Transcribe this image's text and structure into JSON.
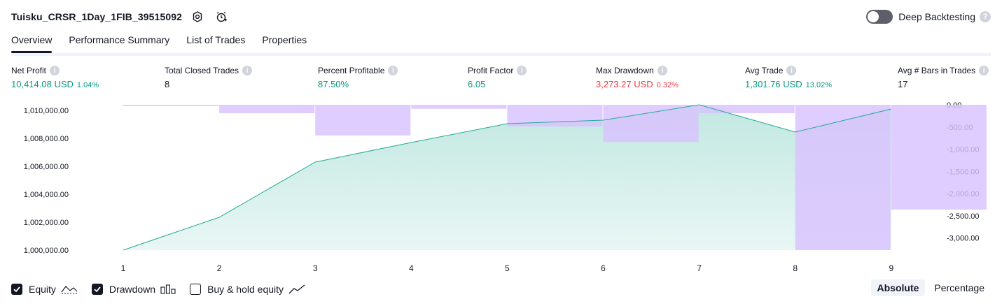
{
  "header": {
    "title": "Tuisku_CRSR_1Day_1FIB_39515092",
    "deep_backtesting_label": "Deep Backtesting",
    "deep_backtesting_on": false
  },
  "tabs": [
    {
      "label": "Overview",
      "active": true
    },
    {
      "label": "Performance Summary",
      "active": false
    },
    {
      "label": "List of Trades",
      "active": false
    },
    {
      "label": "Properties",
      "active": false
    }
  ],
  "stats": {
    "net_profit": {
      "label": "Net Profit",
      "value": "10,414.08 USD",
      "sub": "1.04%"
    },
    "total_closed_trades": {
      "label": "Total Closed Trades",
      "value": "8"
    },
    "percent_profitable": {
      "label": "Percent Profitable",
      "value": "87.50%"
    },
    "profit_factor": {
      "label": "Profit Factor",
      "value": "6.05"
    },
    "max_drawdown": {
      "label": "Max Drawdown",
      "value": "3,273.27 USD",
      "sub": "0.32%"
    },
    "avg_trade": {
      "label": "Avg Trade",
      "value": "1,301.76 USD",
      "sub": "13.02%"
    },
    "avg_bars": {
      "label": "Avg # Bars in Trades",
      "value": "17"
    }
  },
  "chart_data": {
    "type": "area",
    "x": [
      1,
      2,
      3,
      4,
      5,
      6,
      7,
      8,
      9
    ],
    "left_axis": {
      "ticks": [
        "1,010,000.00",
        "1,008,000.00",
        "1,006,000.00",
        "1,004,000.00",
        "1,002,000.00",
        "1,000,000.00"
      ],
      "tick_values": [
        1010000,
        1008000,
        1006000,
        1004000,
        1002000,
        1000000
      ],
      "range": [
        1000000,
        1010400
      ]
    },
    "right_axis": {
      "ticks": [
        "0.00",
        "-500.00",
        "-1,000.00",
        "-1,500.00",
        "-2,000.00",
        "-2,500.00",
        "-3,000.00"
      ],
      "tick_values": [
        0,
        -500,
        -1000,
        -1500,
        -2000,
        -2500,
        -3000
      ],
      "range": [
        -3273.27,
        0
      ]
    },
    "series": [
      {
        "name": "Equity",
        "kind": "line-area",
        "axis": "left",
        "values": [
          1000000,
          1002350,
          1006300,
          1007700,
          1009050,
          1009300,
          1010400,
          1008450,
          1010100
        ],
        "color": "#22ab94"
      },
      {
        "name": "Drawdown",
        "kind": "bar",
        "axis": "right",
        "values": [
          -30,
          -190,
          -690,
          -90,
          -490,
          -840,
          -190,
          -3273.27,
          -2360
        ],
        "color": "#d9c2ff"
      }
    ]
  },
  "legend": {
    "equity": {
      "label": "Equity",
      "checked": true
    },
    "drawdown": {
      "label": "Drawdown",
      "checked": true
    },
    "buy_hold": {
      "label": "Buy & hold equity",
      "checked": false
    }
  },
  "modes": [
    {
      "label": "Absolute",
      "active": true
    },
    {
      "label": "Percentage",
      "active": false
    }
  ],
  "icon_names": [
    "settings-icon",
    "alarm-add-icon",
    "help-icon",
    "info-icon",
    "check-icon",
    "equity-legend-icon",
    "drawdown-legend-icon",
    "buy-hold-legend-icon"
  ]
}
